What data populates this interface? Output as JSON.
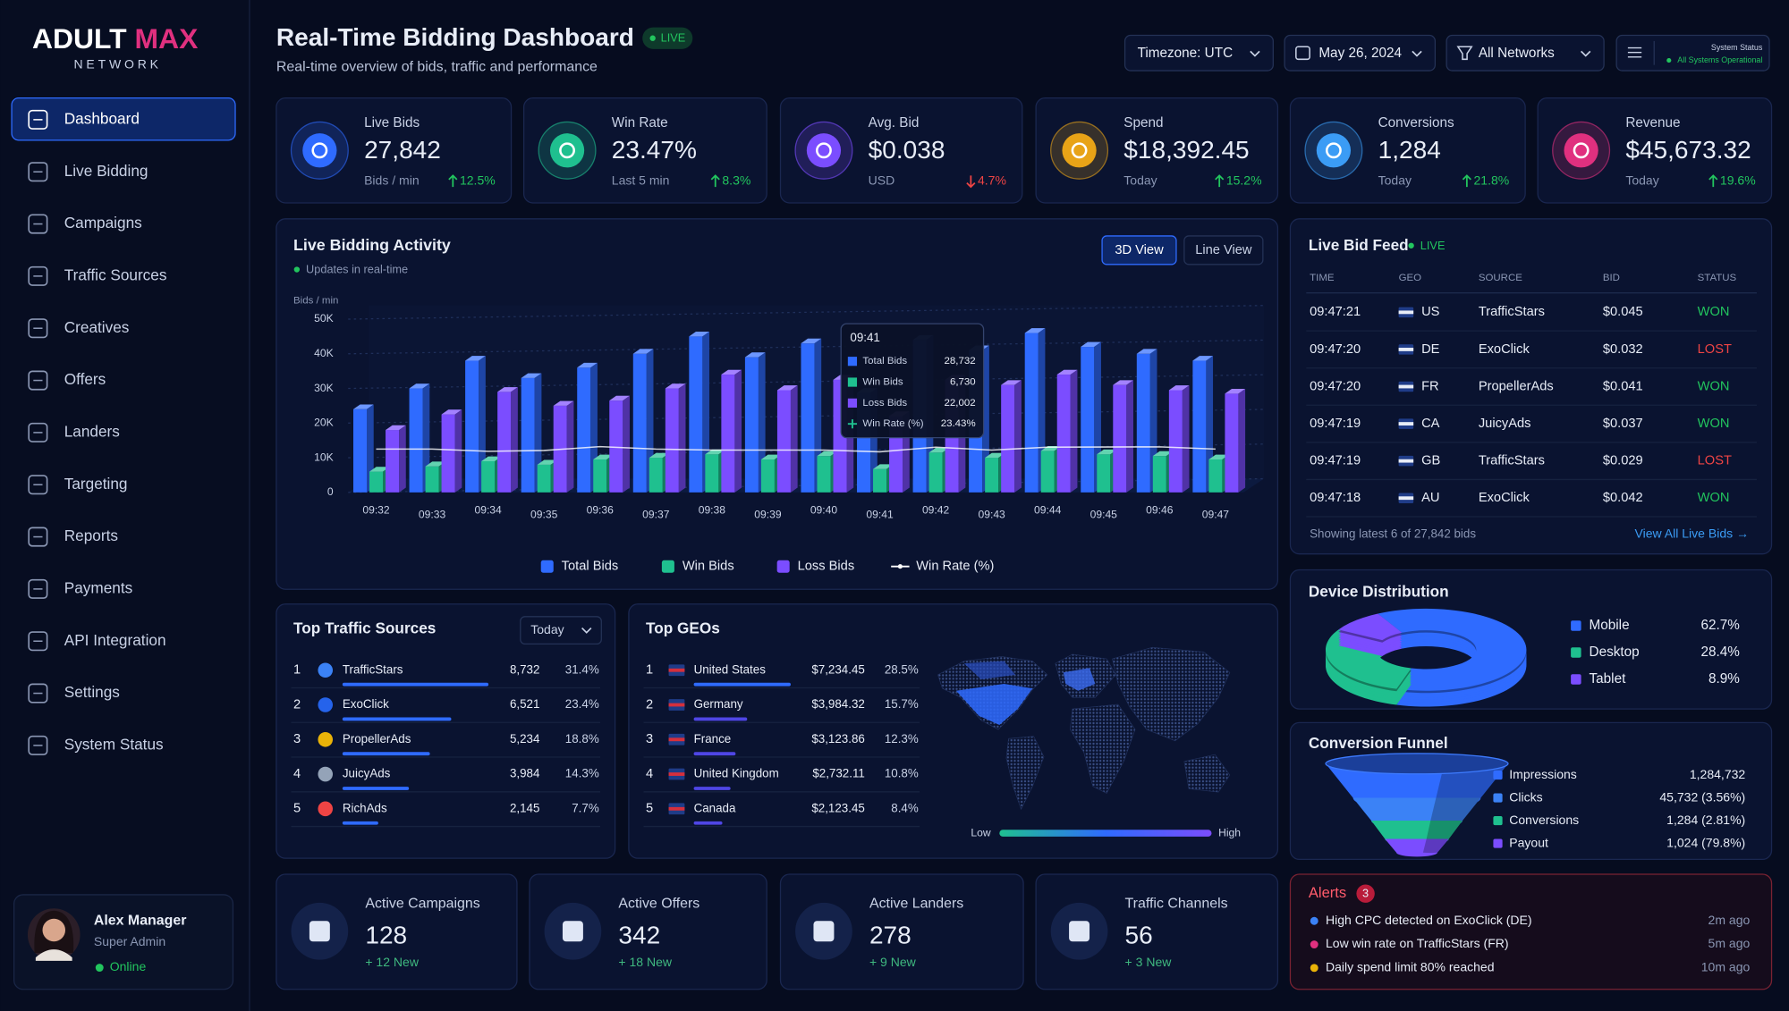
{
  "sidebar": {
    "brand": "ADULT",
    "brand_accent": "MAX",
    "brand_sub": "NETWORK",
    "nav": [
      {
        "label": "Dashboard",
        "active": true
      },
      {
        "label": "Live Bidding"
      },
      {
        "label": "Campaigns"
      },
      {
        "label": "Traffic Sources"
      },
      {
        "label": "Creatives"
      },
      {
        "label": "Offers"
      },
      {
        "label": "Landers"
      },
      {
        "label": "Targeting"
      },
      {
        "label": "Reports"
      },
      {
        "label": "Payments"
      },
      {
        "label": "API Integration"
      },
      {
        "label": "Settings"
      },
      {
        "label": "System Status"
      }
    ],
    "user": {
      "name": "Alex Manager",
      "role": "Super Admin",
      "status": "Online"
    }
  },
  "header": {
    "title": "Real-Time Bidding Dashboard",
    "badge": "LIVE",
    "subtitle": "Real-time overview of bids, traffic and performance",
    "timezone": "Timezone: UTC",
    "date": "May 26, 2024",
    "network": "All Networks",
    "status_title": "System Status",
    "status_text": "All Systems Operational"
  },
  "kpis": [
    {
      "label": "Live Bids",
      "value": "27,842",
      "sub": "Bids / min",
      "change": "12.5%",
      "trend": "up",
      "color": "#2f6bff"
    },
    {
      "label": "Win Rate",
      "value": "23.47%",
      "sub": "Last 5 min",
      "change": "8.3%",
      "trend": "up",
      "color": "#1fc08f"
    },
    {
      "label": "Avg. Bid",
      "value": "$0.038",
      "sub": "USD",
      "change": "4.7%",
      "trend": "down",
      "color": "#7b4dff"
    },
    {
      "label": "Spend",
      "value": "$18,392.45",
      "sub": "Today",
      "change": "15.2%",
      "trend": "up",
      "color": "#e8a317"
    },
    {
      "label": "Conversions",
      "value": "1,284",
      "sub": "Today",
      "change": "21.8%",
      "trend": "up",
      "color": "#3b9cf5"
    },
    {
      "label": "Revenue",
      "value": "$45,673.32",
      "sub": "Today",
      "change": "19.6%",
      "trend": "up",
      "color": "#e0307f"
    }
  ],
  "chart_data": [
    {
      "type": "bar",
      "title": "Live Bidding Activity",
      "subtitle": "Updates in real-time",
      "y_label": "Bids / min",
      "views": [
        {
          "label": "3D View",
          "active": true
        },
        {
          "label": "Line View"
        }
      ],
      "categories": [
        "09:32",
        "09:33",
        "09:34",
        "09:35",
        "09:36",
        "09:37",
        "09:38",
        "09:39",
        "09:40",
        "09:41",
        "09:42",
        "09:43",
        "09:44",
        "09:45",
        "09:46",
        "09:47"
      ],
      "series": [
        {
          "name": "Total Bids",
          "color": "#2f6bff",
          "values": [
            24000,
            30000,
            38000,
            33000,
            36000,
            40000,
            45000,
            39000,
            43000,
            28732,
            44000,
            41000,
            46000,
            42000,
            40000,
            38000
          ]
        },
        {
          "name": "Win Bids",
          "color": "#1fc08f",
          "values": [
            6000,
            7500,
            9000,
            8000,
            9500,
            10000,
            11000,
            9500,
            10500,
            6730,
            11500,
            10000,
            12000,
            11000,
            10500,
            9500
          ]
        },
        {
          "name": "Loss Bids",
          "color": "#7b4dff",
          "values": [
            18000,
            22500,
            29000,
            25000,
            26500,
            30000,
            34000,
            29500,
            32500,
            22002,
            32500,
            31000,
            34000,
            31000,
            29500,
            28500
          ]
        },
        {
          "name": "Win Rate (%)",
          "color": "#ffffff",
          "axis": "y2",
          "values": [
            25.0,
            25.0,
            23.7,
            24.2,
            26.4,
            25.0,
            24.4,
            24.4,
            24.4,
            23.43,
            26.1,
            24.4,
            26.1,
            26.2,
            26.3,
            25.0
          ]
        }
      ],
      "ylim": [
        0,
        50000
      ],
      "yticks": [
        0,
        {
          "value": 10000,
          "label": "10K"
        },
        {
          "value": 20000,
          "label": "20K"
        },
        {
          "value": 30000,
          "label": "30K"
        },
        {
          "value": 40000,
          "label": "40K"
        },
        {
          "value": 50000,
          "label": "50K"
        }
      ],
      "y2lim": [
        0,
        100
      ],
      "grid": true,
      "tooltip": {
        "time": "09:41",
        "values": [
          "28,732",
          "6,730",
          "22,002",
          "23.43%"
        ]
      }
    },
    {
      "type": "pie",
      "title": "Device Distribution",
      "categories": [
        "Mobile",
        "Desktop",
        "Tablet"
      ],
      "values": [
        62.7,
        28.4,
        8.9
      ],
      "value_labels": [
        "62.7%",
        "28.4%",
        "8.9%"
      ],
      "colors": [
        "#2f6bff",
        "#1fc08f",
        "#7b4dff"
      ],
      "donut": true
    }
  ],
  "feed": {
    "title": "Live Bid Feed",
    "badge": "LIVE",
    "columns": [
      "TIME",
      "GEO",
      "SOURCE",
      "BID",
      "STATUS"
    ],
    "rows": [
      {
        "time": "09:47:21",
        "geo": "US",
        "source": "TrafficStars",
        "bid": "$0.045",
        "status": "WON",
        "status_color": "#22c55e"
      },
      {
        "time": "09:47:20",
        "geo": "DE",
        "source": "ExoClick",
        "bid": "$0.032",
        "status": "LOST",
        "status_color": "#ef4444"
      },
      {
        "time": "09:47:20",
        "geo": "FR",
        "source": "PropellerAds",
        "bid": "$0.041",
        "status": "WON",
        "status_color": "#22c55e"
      },
      {
        "time": "09:47:19",
        "geo": "CA",
        "source": "JuicyAds",
        "bid": "$0.037",
        "status": "WON",
        "status_color": "#22c55e"
      },
      {
        "time": "09:47:19",
        "geo": "GB",
        "source": "TrafficStars",
        "bid": "$0.029",
        "status": "LOST",
        "status_color": "#ef4444"
      },
      {
        "time": "09:47:18",
        "geo": "AU",
        "source": "ExoClick",
        "bid": "$0.042",
        "status": "WON",
        "status_color": "#22c55e"
      }
    ],
    "footer": "Showing latest 6 of 27,842 bids",
    "link": "View All Live Bids →"
  },
  "traffic": {
    "title": "Top Traffic Sources",
    "filter": "Today",
    "rows": [
      {
        "rank": 1,
        "name": "TrafficStars",
        "bids": "8,732",
        "share": 31.4,
        "share_label": "31.4%",
        "color": "#3b82f6"
      },
      {
        "rank": 2,
        "name": "ExoClick",
        "bids": "6,521",
        "share": 23.4,
        "share_label": "23.4%",
        "color": "#2563eb"
      },
      {
        "rank": 3,
        "name": "PropellerAds",
        "bids": "5,234",
        "share": 18.8,
        "share_label": "18.8%",
        "color": "#eab308"
      },
      {
        "rank": 4,
        "name": "JuicyAds",
        "bids": "3,984",
        "share": 14.3,
        "share_label": "14.3%",
        "color": "#94a3b8"
      },
      {
        "rank": 5,
        "name": "RichAds",
        "bids": "2,145",
        "share": 7.7,
        "share_label": "7.7%",
        "color": "#ef4444"
      }
    ]
  },
  "geos": {
    "title": "Top GEOs",
    "rows": [
      {
        "rank": 1,
        "name": "United States",
        "revenue": "$7,234.45",
        "share": 28.5,
        "share_label": "28.5%"
      },
      {
        "rank": 2,
        "name": "Germany",
        "revenue": "$3,984.32",
        "share": 15.7,
        "share_label": "15.7%"
      },
      {
        "rank": 3,
        "name": "France",
        "revenue": "$3,123.86",
        "share": 12.3,
        "share_label": "12.3%"
      },
      {
        "rank": 4,
        "name": "United Kingdom",
        "revenue": "$2,732.11",
        "share": 10.8,
        "share_label": "10.8%"
      },
      {
        "rank": 5,
        "name": "Canada",
        "revenue": "$2,123.45",
        "share": 8.4,
        "share_label": "8.4%"
      }
    ],
    "legend_low": "Low",
    "legend_high": "High"
  },
  "funnel": {
    "title": "Conversion Funnel",
    "stages": [
      {
        "name": "Impressions",
        "value": "1,284,732",
        "color": "#2f6bff"
      },
      {
        "name": "Clicks",
        "value": "45,732 (3.56%)",
        "color": "#3b82f6"
      },
      {
        "name": "Conversions",
        "value": "1,284 (2.81%)",
        "color": "#1fc08f"
      },
      {
        "name": "Payout",
        "value": "1,024 (79.8%)",
        "color": "#7b4dff"
      }
    ]
  },
  "stats": [
    {
      "label": "Active Campaigns",
      "value": 128,
      "sub": "+ 12 New"
    },
    {
      "label": "Active Offers",
      "value": 342,
      "sub": "+ 18 New"
    },
    {
      "label": "Active Landers",
      "value": 278,
      "sub": "+ 9 New"
    },
    {
      "label": "Traffic Channels",
      "value": 56,
      "sub": "+ 3 New"
    }
  ],
  "alerts": {
    "title": "Alerts",
    "count": 3,
    "items": [
      {
        "text": "High CPC detected on ExoClick (DE)",
        "time": "2m ago",
        "color": "#3b82f6"
      },
      {
        "text": "Low win rate on TrafficStars (FR)",
        "time": "5m ago",
        "color": "#e0307f"
      },
      {
        "text": "Daily spend limit 80% reached",
        "time": "10m ago",
        "color": "#eab308"
      }
    ]
  }
}
